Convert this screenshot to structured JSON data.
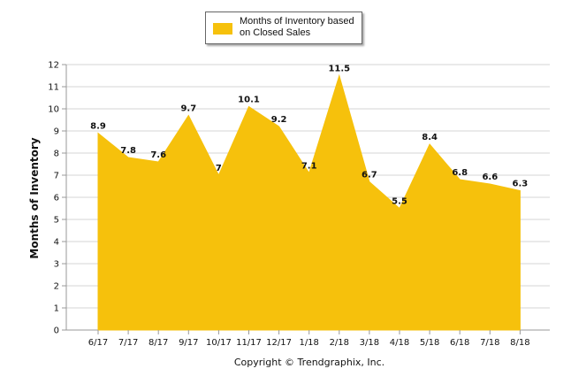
{
  "chart_data": {
    "type": "area",
    "categories": [
      "6/17",
      "7/17",
      "8/17",
      "9/17",
      "10/17",
      "11/17",
      "12/17",
      "1/18",
      "2/18",
      "3/18",
      "4/18",
      "5/18",
      "6/18",
      "7/18",
      "8/18"
    ],
    "series": [
      {
        "name": "Months of Inventory based on Closed Sales",
        "values": [
          8.9,
          7.8,
          7.6,
          9.7,
          7,
          10.1,
          9.2,
          7.1,
          11.5,
          6.7,
          5.5,
          8.4,
          6.8,
          6.6,
          6.3
        ],
        "labels": [
          "8.9",
          "7.8",
          "7.6",
          "9.7",
          "7",
          "10.1",
          "9.2",
          "7.1",
          "11.5",
          "6.7",
          "5.5",
          "8.4",
          "6.8",
          "6.6",
          "6.3"
        ],
        "color": "#f6c10c"
      }
    ],
    "ylabel": "Months of Inventory",
    "ylim": [
      0,
      12
    ],
    "yticks": [
      "0",
      "1",
      "2",
      "3",
      "4",
      "5",
      "6",
      "7",
      "8",
      "9",
      "10",
      "11",
      "12"
    ],
    "grid": true,
    "legend": "top-center",
    "footer": "Copyright © Trendgraphix, Inc."
  },
  "colors": {
    "area": "#f6c10c",
    "grid": "#d4d4d4",
    "axis": "#999999"
  }
}
